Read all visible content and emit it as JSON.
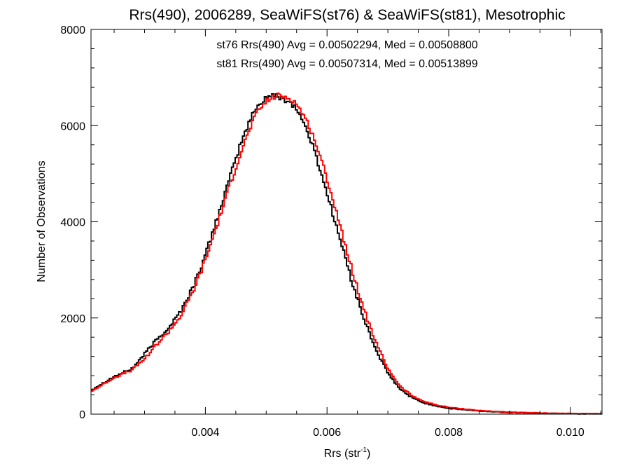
{
  "chart_data": {
    "type": "line",
    "title": "Rrs(490), 2006289, SeaWiFS(st76) & SeaWiFS(st81), Mesotrophic",
    "xlabel_main": "Rrs (str",
    "xlabel_sup": "-1",
    "xlabel_close": ")",
    "ylabel": "Number of Observations",
    "xlim": [
      0.00212,
      0.01052
    ],
    "ylim": [
      0,
      8000
    ],
    "x_ticks": [
      0.004,
      0.006,
      0.008,
      0.01
    ],
    "x_tick_labels": [
      "0.004",
      "0.006",
      "0.008",
      "0.010"
    ],
    "y_ticks": [
      0,
      2000,
      4000,
      6000,
      8000
    ],
    "y_tick_labels": [
      "0",
      "2000",
      "4000",
      "6000",
      "8000"
    ],
    "grid": false,
    "annotations": [
      {
        "text": "st76 Rrs(490) Avg = 0.00502294, Med = 0.00508800",
        "color": "#000000"
      },
      {
        "text": "st81 Rrs(490) Avg = 0.00507314, Med = 0.00513899",
        "color": "#ff0000"
      }
    ],
    "series": [
      {
        "color": "#000000",
        "x": [
          0.00212,
          0.0025,
          0.0028,
          0.003,
          0.0032,
          0.0034,
          0.0036,
          0.0038,
          0.004,
          0.0042,
          0.0044,
          0.0046,
          0.0048,
          0.0049,
          0.005,
          0.0051,
          0.0052,
          0.0053,
          0.0054,
          0.0055,
          0.0056,
          0.0057,
          0.0058,
          0.006,
          0.0062,
          0.0064,
          0.0066,
          0.0068,
          0.007,
          0.0072,
          0.0074,
          0.0076,
          0.0078,
          0.008,
          0.0085,
          0.009,
          0.0095,
          0.01,
          0.01052
        ],
        "values": [
          500,
          780,
          950,
          1250,
          1550,
          1800,
          2150,
          2650,
          3300,
          4100,
          4900,
          5700,
          6300,
          6450,
          6600,
          6620,
          6600,
          6550,
          6480,
          6350,
          6100,
          5800,
          5450,
          4600,
          3700,
          2800,
          2000,
          1350,
          850,
          520,
          340,
          230,
          170,
          120,
          65,
          35,
          20,
          10,
          5
        ]
      },
      {
        "color": "#ff0000",
        "x": [
          0.00212,
          0.0025,
          0.0028,
          0.003,
          0.0032,
          0.0034,
          0.0036,
          0.0038,
          0.004,
          0.0042,
          0.0044,
          0.0046,
          0.0048,
          0.0049,
          0.005,
          0.0051,
          0.0052,
          0.0053,
          0.0054,
          0.0055,
          0.0056,
          0.0057,
          0.0058,
          0.006,
          0.0062,
          0.0064,
          0.0066,
          0.0068,
          0.007,
          0.0072,
          0.0074,
          0.0076,
          0.0078,
          0.008,
          0.0085,
          0.009,
          0.0095,
          0.01,
          0.01052
        ],
        "values": [
          470,
          760,
          920,
          1150,
          1450,
          1720,
          2050,
          2550,
          3200,
          3950,
          4750,
          5500,
          6150,
          6350,
          6500,
          6580,
          6620,
          6600,
          6560,
          6450,
          6250,
          6000,
          5700,
          4900,
          4000,
          3050,
          2200,
          1500,
          950,
          580,
          380,
          260,
          190,
          140,
          75,
          40,
          22,
          12,
          6
        ]
      }
    ]
  }
}
